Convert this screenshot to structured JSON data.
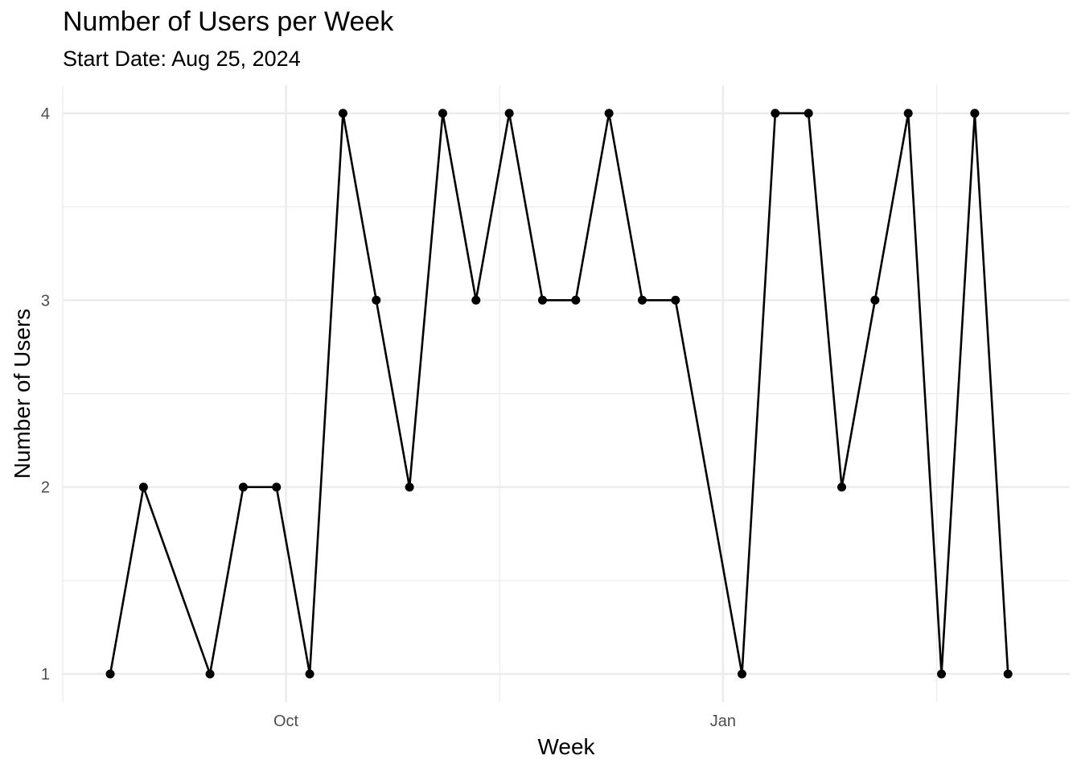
{
  "chart_data": {
    "type": "line",
    "title": "Number of Users per Week",
    "subtitle": "Start Date: Aug 25, 2024",
    "xlabel": "Week",
    "ylabel": "Number of Users",
    "x": [
      "2024-08-25",
      "2024-09-01",
      "2024-09-08",
      "2024-09-15",
      "2024-09-22",
      "2024-09-29",
      "2024-10-06",
      "2024-10-13",
      "2024-10-20",
      "2024-10-27",
      "2024-11-03",
      "2024-11-10",
      "2024-11-17",
      "2024-11-24",
      "2024-12-01",
      "2024-12-08",
      "2024-12-15",
      "2024-12-22",
      "2024-12-29",
      "2025-01-05",
      "2025-01-12",
      "2025-01-19",
      "2025-01-26",
      "2025-02-02",
      "2025-02-09",
      "2025-02-16",
      "2025-02-23",
      "2025-03-02",
      "2025-03-09"
    ],
    "series": [
      {
        "values": [
          1,
          2,
          null,
          1,
          2,
          2,
          1,
          4,
          3,
          2,
          4,
          3,
          4,
          3,
          3,
          4,
          3,
          3,
          null,
          1,
          4,
          4,
          2,
          3,
          4,
          1,
          4,
          1,
          null
        ]
      }
    ],
    "x_ticks": [
      {
        "date": "2024-10-01",
        "label": "Oct"
      },
      {
        "date": "2025-01-01",
        "label": "Jan"
      }
    ],
    "x_minor_gridlines": [
      "2024-08-15",
      "2024-11-15",
      "2025-02-15"
    ],
    "xlim": [
      "2024-08-15",
      "2025-03-15"
    ],
    "y_ticks": [
      1,
      2,
      3,
      4
    ],
    "ylim": [
      1,
      4
    ],
    "grid": true,
    "color": "#000000"
  }
}
